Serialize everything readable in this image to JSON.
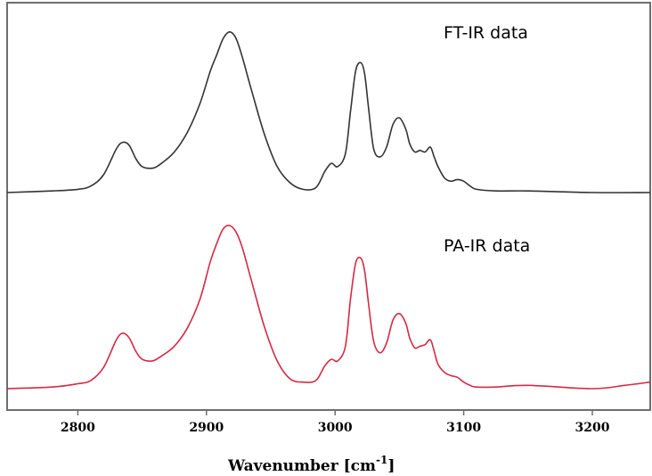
{
  "chart_data": {
    "type": "line",
    "xlabel": "Wavenumber [cm",
    "xlabel_sup": "-1",
    "xlabel_suffix": "]",
    "xlim": [
      2745,
      3245
    ],
    "xticks": [
      2800,
      2900,
      3000,
      3100,
      3200
    ],
    "tick_labels": [
      "2800",
      "2900",
      "3000",
      "3100",
      "3200"
    ],
    "yticks_shown": false,
    "grid": false,
    "annotations": [
      "FT-IR data",
      "PA-IR data"
    ],
    "series": [
      {
        "color": "#333333",
        "x": [
          2745,
          2780,
          2800,
          2810,
          2820,
          2830,
          2835,
          2840,
          2845,
          2850,
          2858,
          2865,
          2875,
          2885,
          2895,
          2903,
          2908,
          2913,
          2918,
          2923,
          2928,
          2935,
          2945,
          2955,
          2965,
          2975,
          2985,
          2992,
          2997,
          3002,
          3008,
          3012,
          3016,
          3020,
          3023,
          3026,
          3030,
          3035,
          3040,
          3045,
          3050,
          3055,
          3058,
          3062,
          3066,
          3070,
          3074,
          3077,
          3080,
          3085,
          3090,
          3095,
          3100,
          3105,
          3110,
          3125,
          3150,
          3200,
          3245
        ],
        "y": [
          0.0,
          0.01,
          0.02,
          0.04,
          0.11,
          0.27,
          0.31,
          0.29,
          0.21,
          0.16,
          0.15,
          0.18,
          0.25,
          0.37,
          0.55,
          0.75,
          0.85,
          0.95,
          0.99,
          0.95,
          0.83,
          0.63,
          0.36,
          0.16,
          0.06,
          0.02,
          0.03,
          0.13,
          0.18,
          0.16,
          0.24,
          0.5,
          0.75,
          0.8,
          0.73,
          0.52,
          0.27,
          0.22,
          0.28,
          0.42,
          0.46,
          0.39,
          0.3,
          0.25,
          0.26,
          0.25,
          0.28,
          0.22,
          0.16,
          0.09,
          0.07,
          0.08,
          0.07,
          0.04,
          0.02,
          0.01,
          0.01,
          0.0,
          0.0
        ]
      },
      {
        "color": "#d42a45",
        "x": [
          2745,
          2780,
          2800,
          2810,
          2820,
          2830,
          2835,
          2840,
          2845,
          2850,
          2858,
          2865,
          2875,
          2885,
          2895,
          2903,
          2908,
          2913,
          2918,
          2923,
          2928,
          2935,
          2945,
          2955,
          2965,
          2975,
          2985,
          2992,
          2997,
          3002,
          3008,
          3012,
          3016,
          3020,
          3023,
          3026,
          3030,
          3035,
          3040,
          3045,
          3050,
          3055,
          3058,
          3062,
          3066,
          3070,
          3074,
          3077,
          3080,
          3085,
          3090,
          3095,
          3100,
          3105,
          3110,
          3125,
          3150,
          3200,
          3225,
          3245
        ],
        "y": [
          0.0,
          0.01,
          0.03,
          0.05,
          0.13,
          0.3,
          0.34,
          0.31,
          0.23,
          0.18,
          0.17,
          0.2,
          0.26,
          0.37,
          0.55,
          0.78,
          0.89,
          0.98,
          1.0,
          0.96,
          0.86,
          0.66,
          0.38,
          0.17,
          0.06,
          0.04,
          0.05,
          0.14,
          0.18,
          0.17,
          0.26,
          0.55,
          0.77,
          0.8,
          0.72,
          0.52,
          0.29,
          0.22,
          0.28,
          0.42,
          0.46,
          0.4,
          0.31,
          0.25,
          0.26,
          0.27,
          0.3,
          0.23,
          0.15,
          0.1,
          0.08,
          0.07,
          0.04,
          0.02,
          0.01,
          0.01,
          0.02,
          0.0,
          0.02,
          0.04
        ]
      }
    ]
  }
}
